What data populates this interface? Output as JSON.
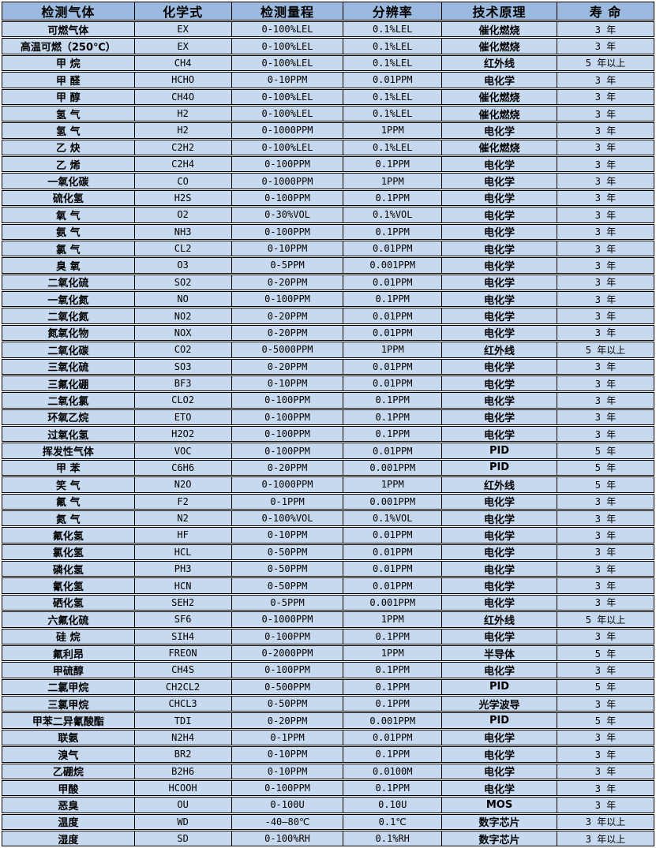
{
  "colors": {
    "header_bg": "#9cbadf",
    "row_bg": "#c7d9ef",
    "border": "#000000",
    "gap": "#ffffff",
    "text": "#000000"
  },
  "table": {
    "headers": [
      "检测气体",
      "化学式",
      "检测量程",
      "分辨率",
      "技术原理",
      "寿 命"
    ],
    "rows": [
      [
        "可燃气体",
        "EX",
        "0-100%LEL",
        "0.1%LEL",
        "催化燃烧",
        "3 年"
      ],
      [
        "高温可燃（250℃）",
        "EX",
        "0-100%LEL",
        "0.1%LEL",
        "催化燃烧",
        "3 年"
      ],
      [
        "甲 烷",
        "CH4",
        "0-100%LEL",
        "0.1%LEL",
        "红外线",
        "5 年以上"
      ],
      [
        "甲 醛",
        "HCHO",
        "0-10PPM",
        "0.01PPM",
        "电化学",
        "3 年"
      ],
      [
        "甲 醇",
        "CH4O",
        "0-100%LEL",
        "0.1%LEL",
        "催化燃烧",
        "3 年"
      ],
      [
        "氢 气",
        "H2",
        "0-100%LEL",
        "0.1%LEL",
        "催化燃烧",
        "3 年"
      ],
      [
        "氢 气",
        "H2",
        "0-1000PPM",
        "1PPM",
        "电化学",
        "3 年"
      ],
      [
        "乙 炔",
        "C2H2",
        "0-100%LEL",
        "0.1%LEL",
        "催化燃烧",
        "3 年"
      ],
      [
        "乙 烯",
        "C2H4",
        "0-100PPM",
        "0.1PPM",
        "电化学",
        "3 年"
      ],
      [
        "一氧化碳",
        "CO",
        "0-1000PPM",
        "1PPM",
        "电化学",
        "3 年"
      ],
      [
        "硫化氢",
        "H2S",
        "0-100PPM",
        "0.1PPM",
        "电化学",
        "3 年"
      ],
      [
        "氧 气",
        "O2",
        "0-30%VOL",
        "0.1%VOL",
        "电化学",
        "3 年"
      ],
      [
        "氨 气",
        "NH3",
        "0-100PPM",
        "0.1PPM",
        "电化学",
        "3 年"
      ],
      [
        "氯 气",
        "CL2",
        "0-10PPM",
        "0.01PPM",
        "电化学",
        "3 年"
      ],
      [
        "臭 氧",
        "O3",
        "0-5PPM",
        "0.001PPM",
        "电化学",
        "3 年"
      ],
      [
        "二氧化硫",
        "SO2",
        "0-20PPM",
        "0.01PPM",
        "电化学",
        "3 年"
      ],
      [
        "一氧化氮",
        "NO",
        "0-100PPM",
        "0.1PPM",
        "电化学",
        "3 年"
      ],
      [
        "二氧化氮",
        "NO2",
        "0-20PPM",
        "0.01PPM",
        "电化学",
        "3 年"
      ],
      [
        "氮氧化物",
        "NOX",
        "0-20PPM",
        "0.01PPM",
        "电化学",
        "3 年"
      ],
      [
        "二氧化碳",
        "CO2",
        "0-5000PPM",
        "1PPM",
        "红外线",
        "5 年以上"
      ],
      [
        "三氧化硫",
        "SO3",
        "0-20PPM",
        "0.01PPM",
        "电化学",
        "3 年"
      ],
      [
        "三氟化硼",
        "BF3",
        "0-10PPM",
        "0.01PPM",
        "电化学",
        "3 年"
      ],
      [
        "二氧化氯",
        "CLO2",
        "0-100PPM",
        "0.1PPM",
        "电化学",
        "3 年"
      ],
      [
        "环氧乙烷",
        "ETO",
        "0-100PPM",
        "0.1PPM",
        "电化学",
        "3 年"
      ],
      [
        "过氧化氢",
        "H2O2",
        "0-100PPM",
        "0.1PPM",
        "电化学",
        "3 年"
      ],
      [
        "挥发性气体",
        "VOC",
        "0-100PPM",
        "0.01PPM",
        "PID",
        "5 年"
      ],
      [
        "甲 苯",
        "C6H6",
        "0-20PPM",
        "0.001PPM",
        "PID",
        "5 年"
      ],
      [
        "笑 气",
        "N2O",
        "0-1000PPM",
        "1PPM",
        "红外线",
        "5 年"
      ],
      [
        "氟 气",
        "F2",
        "0-1PPM",
        "0.001PPM",
        "电化学",
        "3 年"
      ],
      [
        "氮 气",
        "N2",
        "0-100%VOL",
        "0.1%VOL",
        "电化学",
        "3 年"
      ],
      [
        "氟化氢",
        "HF",
        "0-10PPM",
        "0.01PPM",
        "电化学",
        "3 年"
      ],
      [
        "氯化氢",
        "HCL",
        "0-50PPM",
        "0.01PPM",
        "电化学",
        "3 年"
      ],
      [
        "磷化氢",
        "PH3",
        "0-50PPM",
        "0.01PPM",
        "电化学",
        "3 年"
      ],
      [
        "氰化氢",
        "HCN",
        "0-50PPM",
        "0.01PPM",
        "电化学",
        "3 年"
      ],
      [
        "硒化氢",
        "SEH2",
        "0-5PPM",
        "0.001PPM",
        "电化学",
        "3 年"
      ],
      [
        "六氟化硫",
        "SF6",
        "0-1000PPM",
        "1PPM",
        "红外线",
        "5 年以上"
      ],
      [
        "硅 烷",
        "SIH4",
        "0-100PPM",
        "0.1PPM",
        "电化学",
        "3 年"
      ],
      [
        "氟利昂",
        "FREON",
        "0-2000PPM",
        "1PPM",
        "半导体",
        "5 年"
      ],
      [
        "甲硫醇",
        "CH4S",
        "0-100PPM",
        "0.1PPM",
        "电化学",
        "3 年"
      ],
      [
        "二氯甲烷",
        "CH2CL2",
        "0-500PPM",
        "0.1PPM",
        "PID",
        "5 年"
      ],
      [
        "三氯甲烷",
        "CHCL3",
        "0-50PPM",
        "0.1PPM",
        "光学波导",
        "3 年"
      ],
      [
        "甲苯二异氰酸酯",
        "TDI",
        "0-20PPM",
        "0.001PPM",
        "PID",
        "5 年"
      ],
      [
        "联氨",
        "N2H4",
        "0-1PPM",
        "0.01PPM",
        "电化学",
        "3 年"
      ],
      [
        "溴气",
        "BR2",
        "0-10PPM",
        "0.1PPM",
        "电化学",
        "3 年"
      ],
      [
        "乙硼烷",
        "B2H6",
        "0-10PPM",
        "0.0100M",
        "电化学",
        "3 年"
      ],
      [
        "甲酸",
        "HCOOH",
        "0-100PPM",
        "0.1PPM",
        "电化学",
        "3 年"
      ],
      [
        "恶臭",
        "OU",
        "0-100U",
        "0.10U",
        "MOS",
        "3 年"
      ],
      [
        "温度",
        "WD",
        "-40—80℃",
        "0.1℃",
        "数字芯片",
        "3 年以上"
      ],
      [
        "湿度",
        "SD",
        "0-100%RH",
        "0.1%RH",
        "数字芯片",
        "3 年以上"
      ]
    ]
  }
}
